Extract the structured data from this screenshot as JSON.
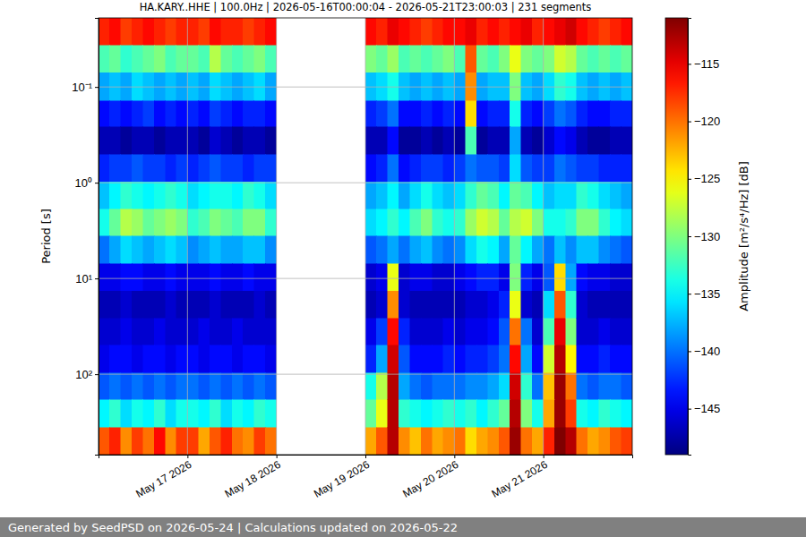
{
  "chart_data": {
    "type": "heatmap",
    "title": "HA.KARY..HHE | 100.0Hz | 2026-05-16T00:00:04 - 2026-05-21T23:00:03 | 231 segments",
    "ylabel": "Period [s]",
    "footer": "Generated by SeedPSD on 2026-05-24 | Calculations updated on 2026-05-22",
    "log": "y",
    "grid": true,
    "xlim": [
      "2026-05-16T00:00",
      "2026-05-22T00:00"
    ],
    "xticks": [
      {
        "value": "2026-05-17",
        "label": "May 17 2026"
      },
      {
        "value": "2026-05-18",
        "label": "May 18 2026"
      },
      {
        "value": "2026-05-19",
        "label": "May 19 2026"
      },
      {
        "value": "2026-05-20",
        "label": "May 20 2026"
      },
      {
        "value": "2026-05-21",
        "label": "May 21 2026"
      }
    ],
    "ylim": [
      0.019,
      692
    ],
    "yticks": [
      {
        "value": 0.1,
        "label": "10⁻¹"
      },
      {
        "value": 1,
        "label": "10⁰"
      },
      {
        "value": 10,
        "label": "10¹"
      },
      {
        "value": 100,
        "label": "10²"
      }
    ],
    "x": [
      "2026-05-16T00:00",
      "2026-05-16T03:00",
      "2026-05-16T06:00",
      "2026-05-16T09:00",
      "2026-05-16T12:00",
      "2026-05-16T15:00",
      "2026-05-16T18:00",
      "2026-05-16T21:00",
      "2026-05-17T00:00",
      "2026-05-17T03:00",
      "2026-05-17T06:00",
      "2026-05-17T09:00",
      "2026-05-17T12:00",
      "2026-05-17T15:00",
      "2026-05-17T18:00",
      "2026-05-17T21:00",
      "2026-05-18T00:00",
      "2026-05-18T03:00",
      "2026-05-18T06:00",
      "2026-05-18T09:00",
      "2026-05-18T12:00",
      "2026-05-18T15:00",
      "2026-05-18T18:00",
      "2026-05-18T21:00",
      "2026-05-19T00:00",
      "2026-05-19T03:00",
      "2026-05-19T06:00",
      "2026-05-19T09:00",
      "2026-05-19T12:00",
      "2026-05-19T15:00",
      "2026-05-19T18:00",
      "2026-05-19T21:00",
      "2026-05-20T00:00",
      "2026-05-20T03:00",
      "2026-05-20T06:00",
      "2026-05-20T09:00",
      "2026-05-20T12:00",
      "2026-05-20T15:00",
      "2026-05-20T18:00",
      "2026-05-20T21:00",
      "2026-05-21T00:00",
      "2026-05-21T03:00",
      "2026-05-21T06:00",
      "2026-05-21T09:00",
      "2026-05-21T12:00",
      "2026-05-21T15:00",
      "2026-05-21T18:00",
      "2026-05-21T21:00",
      "2026-05-22T00:00"
    ],
    "y": [
      0.019,
      0.037,
      0.071,
      0.14,
      0.26,
      0.51,
      0.98,
      1.9,
      3.6,
      7.0,
      13.5,
      26,
      50,
      97,
      186,
      359,
      692
    ],
    "values": [
      [
        -117,
        -116,
        -118,
        -117,
        -116,
        -117,
        -118,
        -117,
        -117,
        -118,
        -116,
        -117,
        -117,
        -118,
        -117,
        -116,
        null,
        null,
        null,
        null,
        null,
        null,
        null,
        null,
        -116,
        -117,
        -115,
        -116,
        -117,
        -118,
        -117,
        -116,
        -116,
        -115,
        -117,
        -116,
        -117,
        -116,
        -115,
        -117,
        -116,
        -115,
        -114,
        -116,
        -117,
        -118,
        -117,
        -116
      ],
      [
        -132,
        -131,
        -133,
        -132,
        -131,
        -130,
        -132,
        -131,
        -131,
        -132,
        -128,
        -131,
        -132,
        -131,
        -130,
        -132,
        null,
        null,
        null,
        null,
        null,
        null,
        null,
        null,
        -130,
        -131,
        -129,
        -132,
        -131,
        -132,
        -131,
        -130,
        -132,
        -119,
        -131,
        -132,
        -130,
        -126,
        -130,
        -131,
        -130,
        -127,
        -128,
        -131,
        -132,
        -131,
        -132,
        -131
      ],
      [
        -138,
        -137,
        -138,
        -136,
        -137,
        -138,
        -137,
        -138,
        -137,
        -138,
        -136,
        -137,
        -138,
        -137,
        -136,
        -138,
        null,
        null,
        null,
        null,
        null,
        null,
        null,
        null,
        -137,
        -136,
        -134,
        -137,
        -138,
        -137,
        -138,
        -137,
        -138,
        -121,
        -138,
        -137,
        -137,
        -130,
        -137,
        -138,
        -136,
        -133,
        -134,
        -137,
        -138,
        -137,
        -138,
        -137
      ],
      [
        -144,
        -143,
        -144,
        -143,
        -142,
        -144,
        -143,
        -144,
        -143,
        -144,
        -142,
        -143,
        -144,
        -143,
        -143,
        -144,
        null,
        null,
        null,
        null,
        null,
        null,
        null,
        null,
        -143,
        -142,
        -140,
        -144,
        -144,
        -143,
        -144,
        -143,
        -144,
        -124,
        -144,
        -143,
        -143,
        -134,
        -143,
        -144,
        -142,
        -140,
        -141,
        -143,
        -144,
        -144,
        -143,
        -143
      ],
      [
        -147,
        -147,
        -148,
        -147,
        -147,
        -148,
        -147,
        -147,
        -147,
        -148,
        -146,
        -147,
        -148,
        -147,
        -147,
        -148,
        null,
        null,
        null,
        null,
        null,
        null,
        null,
        null,
        -147,
        -147,
        -144,
        -148,
        -148,
        -147,
        -148,
        -147,
        -148,
        -132,
        -148,
        -147,
        -147,
        -138,
        -147,
        -148,
        -146,
        -144,
        -145,
        -147,
        -148,
        -148,
        -147,
        -147
      ],
      [
        -143,
        -142,
        -142,
        -141,
        -142,
        -142,
        -143,
        -142,
        -143,
        -142,
        -141,
        -142,
        -142,
        -143,
        -142,
        -142,
        null,
        null,
        null,
        null,
        null,
        null,
        null,
        null,
        -144,
        -143,
        -140,
        -144,
        -143,
        -142,
        -142,
        -143,
        -142,
        -140,
        -141,
        -141,
        -142,
        -136,
        -141,
        -142,
        -142,
        -140,
        -141,
        -142,
        -142,
        -143,
        -143,
        -143
      ],
      [
        -137,
        -135,
        -133,
        -134,
        -135,
        -134,
        -133,
        -134,
        -136,
        -135,
        -134,
        -134,
        -135,
        -133,
        -134,
        -136,
        null,
        null,
        null,
        null,
        null,
        null,
        null,
        null,
        -138,
        -137,
        -135,
        -138,
        -136,
        -134,
        -136,
        -137,
        -136,
        -133,
        -131,
        -132,
        -135,
        -131,
        -132,
        -135,
        -137,
        -136,
        -136,
        -133,
        -134,
        -136,
        -137,
        -138
      ],
      [
        -134,
        -131,
        -128,
        -129,
        -131,
        -130,
        -129,
        -130,
        -133,
        -132,
        -130,
        -131,
        -132,
        -130,
        -130,
        -133,
        null,
        null,
        null,
        null,
        null,
        null,
        null,
        null,
        -136,
        -135,
        -133,
        -135,
        -132,
        -130,
        -133,
        -134,
        -133,
        -129,
        -127,
        -128,
        -131,
        -128,
        -127,
        -130,
        -134,
        -134,
        -133,
        -130,
        -130,
        -133,
        -135,
        -136
      ],
      [
        -140,
        -138,
        -136,
        -137,
        -138,
        -137,
        -136,
        -137,
        -139,
        -138,
        -137,
        -138,
        -138,
        -137,
        -137,
        -139,
        null,
        null,
        null,
        null,
        null,
        null,
        null,
        null,
        -141,
        -140,
        -138,
        -140,
        -138,
        -137,
        -139,
        -140,
        -139,
        -136,
        -134,
        -135,
        -138,
        -131,
        -135,
        -138,
        -140,
        -137,
        -139,
        -137,
        -137,
        -139,
        -140,
        -141
      ],
      [
        -145,
        -145,
        -144,
        -144,
        -145,
        -145,
        -144,
        -145,
        -145,
        -145,
        -144,
        -145,
        -145,
        -144,
        -145,
        -145,
        null,
        null,
        null,
        null,
        null,
        null,
        null,
        null,
        -146,
        -145,
        -126,
        -146,
        -145,
        -145,
        -146,
        -146,
        -145,
        -144,
        -143,
        -143,
        -145,
        -130,
        -143,
        -145,
        -141,
        -124,
        -138,
        -144,
        -145,
        -145,
        -146,
        -146
      ],
      [
        -147,
        -147,
        -146,
        -147,
        -147,
        -147,
        -146,
        -147,
        -147,
        -147,
        -146,
        -147,
        -147,
        -147,
        -146,
        -147,
        null,
        null,
        null,
        null,
        null,
        null,
        null,
        null,
        -147,
        -146,
        -121,
        -146,
        -147,
        -147,
        -147,
        -147,
        -147,
        -146,
        -146,
        -145,
        -143,
        -126,
        -146,
        -147,
        -136,
        -119,
        -133,
        -146,
        -147,
        -147,
        -147,
        -147
      ],
      [
        -146,
        -146,
        -145,
        -146,
        -146,
        -145,
        -146,
        -146,
        -146,
        -145,
        -146,
        -146,
        -145,
        -146,
        -146,
        -146,
        null,
        null,
        null,
        null,
        null,
        null,
        null,
        null,
        -145,
        -142,
        -116,
        -143,
        -146,
        -146,
        -146,
        -145,
        -146,
        -145,
        -145,
        -144,
        -141,
        -120,
        -140,
        -146,
        -132,
        -115,
        -130,
        -146,
        -146,
        -145,
        -146,
        -146
      ],
      [
        -145,
        -144,
        -144,
        -145,
        -144,
        -144,
        -145,
        -144,
        -144,
        -145,
        -144,
        -144,
        -145,
        -144,
        -144,
        -145,
        null,
        null,
        null,
        null,
        null,
        null,
        null,
        null,
        -143,
        -138,
        -114,
        -141,
        -144,
        -144,
        -144,
        -143,
        -144,
        -143,
        -143,
        -142,
        -140,
        -116,
        -138,
        -144,
        -127,
        -113,
        -125,
        -144,
        -144,
        -143,
        -144,
        -144
      ],
      [
        -141,
        -140,
        -141,
        -140,
        -141,
        -140,
        -141,
        -140,
        -140,
        -141,
        -140,
        -141,
        -140,
        -141,
        -140,
        -141,
        null,
        null,
        null,
        null,
        null,
        null,
        null,
        null,
        -134,
        -128,
        -113,
        -138,
        -140,
        -141,
        -140,
        -140,
        -140,
        -139,
        -139,
        -138,
        -136,
        -114,
        -133,
        -140,
        -123,
        -112,
        -120,
        -140,
        -141,
        -140,
        -140,
        -141
      ],
      [
        -135,
        -133,
        -136,
        -134,
        -135,
        -133,
        -136,
        -134,
        -134,
        -135,
        -133,
        -136,
        -134,
        -135,
        -133,
        -134,
        null,
        null,
        null,
        null,
        null,
        null,
        null,
        null,
        -131,
        -126,
        -113,
        -133,
        -134,
        -135,
        -134,
        -133,
        -134,
        -133,
        -135,
        -133,
        -131,
        -113,
        -130,
        -134,
        -122,
        -112,
        -118,
        -134,
        -135,
        -133,
        -134,
        -135
      ],
      [
        -119,
        -117,
        -121,
        -118,
        -120,
        -116,
        -121,
        -118,
        -118,
        -122,
        -119,
        -117,
        -120,
        -121,
        -118,
        -120,
        null,
        null,
        null,
        null,
        null,
        null,
        null,
        null,
        -122,
        -119,
        -113,
        -121,
        -123,
        -120,
        -122,
        -121,
        -120,
        -124,
        -122,
        -121,
        -119,
        -112,
        -120,
        -122,
        -117,
        -111,
        -113,
        -120,
        -122,
        -121,
        -119,
        -118
      ]
    ],
    "colorbar": {
      "label": "Amplitude [m²/s⁴/Hz] [dB]",
      "range": [
        -149,
        -111
      ],
      "ticks": [
        {
          "value": -145,
          "label": "−145"
        },
        {
          "value": -140,
          "label": "−140"
        },
        {
          "value": -135,
          "label": "−135"
        },
        {
          "value": -130,
          "label": "−130"
        },
        {
          "value": -125,
          "label": "−125"
        },
        {
          "value": -120,
          "label": "−120"
        },
        {
          "value": -115,
          "label": "−115"
        }
      ]
    }
  }
}
